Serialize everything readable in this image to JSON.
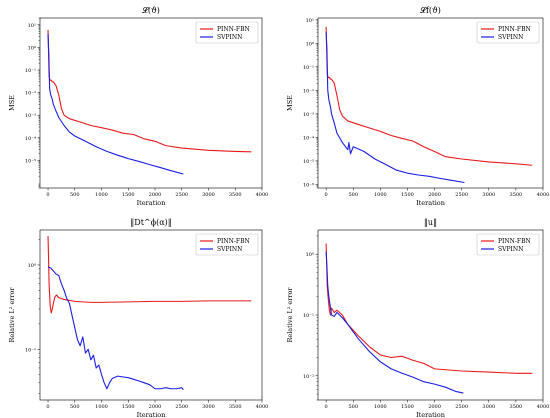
{
  "chart_data": [
    {
      "type": "line",
      "title": "𝓛(ϑ)",
      "xlabel": "Iteration",
      "ylabel": "MSE",
      "yscale": "log",
      "xlim": [
        -150,
        4000
      ],
      "ylim": [
        6e-07,
        20
      ],
      "xticks": [
        0,
        500,
        1000,
        1500,
        2000,
        2500,
        3000,
        3500,
        4000
      ],
      "yticks": [
        1e-05,
        0.0001,
        0.001,
        0.01,
        0.1,
        1,
        10
      ],
      "yticklabels": [
        "10⁻⁵",
        "10⁻⁴",
        "10⁻³",
        "10⁻²",
        "10⁻¹",
        "10⁰",
        "10¹"
      ],
      "legend": "top-right",
      "series": [
        {
          "name": "PINN-FBN",
          "color": "#e8191c",
          "x": [
            0,
            20,
            40,
            60,
            80,
            100,
            150,
            200,
            250,
            300,
            400,
            600,
            800,
            1000,
            1200,
            1400,
            1600,
            1800,
            2000,
            2200,
            2500,
            3000,
            3500,
            3800
          ],
          "y": [
            6,
            0.05,
            0.035,
            0.035,
            0.03,
            0.03,
            0.02,
            0.008,
            0.002,
            0.001,
            0.0007,
            0.0005,
            0.00035,
            0.00028,
            0.00022,
            0.00016,
            0.00014,
            9e-05,
            7e-05,
            4.5e-05,
            3.5e-05,
            2.8e-05,
            2.5e-05,
            2.4e-05
          ]
        },
        {
          "name": "SVPINN",
          "color": "#1b1ee0",
          "x": [
            0,
            15,
            30,
            50,
            80,
            100,
            150,
            200,
            300,
            400,
            500,
            700,
            900,
            1100,
            1300,
            1500,
            1700,
            1900,
            2100,
            2300,
            2530
          ],
          "y": [
            4,
            0.5,
            0.015,
            0.008,
            0.005,
            0.003,
            0.0015,
            0.0008,
            0.00035,
            0.00018,
            0.00012,
            7e-05,
            4e-05,
            2.5e-05,
            1.7e-05,
            1.2e-05,
            9e-06,
            6.5e-06,
            4.8e-06,
            3.5e-06,
            2.5e-06
          ]
        }
      ]
    },
    {
      "type": "line",
      "title": "𝓛f(ϑ)",
      "xlabel": "Iteration",
      "ylabel": "MSE",
      "yscale": "log",
      "xlim": [
        -150,
        4000
      ],
      "ylim": [
        7e-07,
        12
      ],
      "xticks": [
        0,
        500,
        1000,
        1500,
        2000,
        2500,
        3000,
        3500,
        4000
      ],
      "yticks": [
        1e-06,
        1e-05,
        0.0001,
        0.001,
        0.01,
        0.1,
        1,
        10
      ],
      "yticklabels": [
        "10⁻⁶",
        "10⁻⁵",
        "10⁻⁴",
        "10⁻³",
        "10⁻²",
        "10⁻¹",
        "10⁰",
        "10¹"
      ],
      "legend": "top-right",
      "series": [
        {
          "name": "PINN-FBN",
          "color": "#e8191c",
          "x": [
            0,
            20,
            40,
            60,
            80,
            100,
            150,
            200,
            250,
            300,
            400,
            600,
            800,
            1000,
            1200,
            1400,
            1600,
            1800,
            2000,
            2200,
            2500,
            3000,
            3500,
            3800
          ],
          "y": [
            5,
            0.05,
            0.035,
            0.035,
            0.03,
            0.03,
            0.02,
            0.006,
            0.0015,
            0.0008,
            0.0005,
            0.00035,
            0.00025,
            0.00018,
            0.00012,
            9e-05,
            7e-05,
            4e-05,
            2.5e-05,
            1.5e-05,
            1.2e-05,
            9e-06,
            7.5e-06,
            6.5e-06
          ]
        },
        {
          "name": "SVPINN",
          "color": "#1b1ee0",
          "x": [
            0,
            15,
            30,
            50,
            80,
            100,
            150,
            200,
            300,
            400,
            420,
            450,
            500,
            700,
            900,
            1100,
            1300,
            1500,
            1700,
            1900,
            2100,
            2300,
            2550
          ],
          "y": [
            3,
            0.5,
            0.01,
            0.004,
            0.002,
            0.001,
            0.0004,
            0.00015,
            6e-05,
            3e-05,
            6e-05,
            2e-05,
            4e-05,
            2.5e-05,
            1.2e-05,
            7e-06,
            4e-06,
            3e-06,
            2.5e-06,
            2.2e-06,
            1.8e-06,
            1.5e-06,
            1.2e-06
          ]
        }
      ]
    },
    {
      "type": "line",
      "title": "‖Dt^ϕ(α)‖",
      "xlabel": "Iteration",
      "ylabel": "Relative L² error",
      "yscale": "log",
      "xlim": [
        -150,
        4000
      ],
      "ylim": [
        0.025,
        2.6
      ],
      "xticks": [
        0,
        500,
        1000,
        1500,
        2000,
        2500,
        3000,
        3500,
        4000
      ],
      "yticks": [
        0.1,
        1
      ],
      "yticklabels": [
        "10⁻¹",
        "10⁰"
      ],
      "legend": "top-right",
      "series": [
        {
          "name": "PINN-FBN",
          "color": "#e8191c",
          "x": [
            0,
            10,
            20,
            40,
            60,
            80,
            100,
            130,
            160,
            200,
            300,
            500,
            800,
            1000,
            1500,
            2000,
            2500,
            3000,
            3500,
            3800
          ],
          "y": [
            2.2,
            1.2,
            0.6,
            0.33,
            0.27,
            0.3,
            0.35,
            0.42,
            0.44,
            0.41,
            0.39,
            0.37,
            0.36,
            0.36,
            0.365,
            0.37,
            0.37,
            0.375,
            0.375,
            0.375
          ]
        },
        {
          "name": "SVPINN",
          "color": "#1b1ee0",
          "x": [
            0,
            50,
            100,
            150,
            200,
            250,
            300,
            350,
            400,
            450,
            500,
            550,
            600,
            650,
            700,
            750,
            800,
            850,
            900,
            950,
            1000,
            1050,
            1100,
            1150,
            1200,
            1300,
            1400,
            1500,
            1600,
            1700,
            1800,
            1900,
            2000,
            2100,
            2200,
            2300,
            2400,
            2500,
            2530
          ],
          "y": [
            0.95,
            0.92,
            0.85,
            0.78,
            0.75,
            0.6,
            0.5,
            0.4,
            0.35,
            0.25,
            0.18,
            0.13,
            0.11,
            0.14,
            0.09,
            0.1,
            0.075,
            0.085,
            0.06,
            0.065,
            0.05,
            0.04,
            0.034,
            0.04,
            0.045,
            0.048,
            0.047,
            0.046,
            0.044,
            0.042,
            0.04,
            0.038,
            0.034,
            0.034,
            0.035,
            0.034,
            0.034,
            0.035,
            0.033
          ]
        }
      ]
    },
    {
      "type": "line",
      "title": "‖u‖",
      "xlabel": "Iteration",
      "ylabel": "Relative L² error",
      "yscale": "log",
      "xlim": [
        -150,
        4000
      ],
      "ylim": [
        0.004,
        2.5
      ],
      "xticks": [
        0,
        500,
        1000,
        1500,
        2000,
        2500,
        3000,
        3500,
        4000
      ],
      "yticks": [
        0.01,
        0.1,
        1
      ],
      "yticklabels": [
        "10⁻²",
        "10⁻¹",
        "10⁰"
      ],
      "legend": "top-right",
      "series": [
        {
          "name": "PINN-FBN",
          "color": "#e8191c",
          "x": [
            0,
            20,
            40,
            60,
            80,
            100,
            150,
            200,
            300,
            400,
            600,
            800,
            1000,
            1200,
            1400,
            1600,
            1800,
            2000,
            2500,
            3000,
            3500,
            3800
          ],
          "y": [
            1.5,
            0.3,
            0.18,
            0.12,
            0.1,
            0.13,
            0.11,
            0.12,
            0.1,
            0.07,
            0.045,
            0.03,
            0.022,
            0.02,
            0.021,
            0.018,
            0.016,
            0.013,
            0.012,
            0.0115,
            0.011,
            0.011
          ]
        },
        {
          "name": "SVPINN",
          "color": "#1b1ee0",
          "x": [
            0,
            15,
            30,
            50,
            80,
            100,
            150,
            200,
            300,
            400,
            600,
            800,
            1000,
            1200,
            1400,
            1600,
            1800,
            2000,
            2200,
            2400,
            2530
          ],
          "y": [
            1.1,
            0.6,
            0.3,
            0.2,
            0.13,
            0.1,
            0.095,
            0.11,
            0.09,
            0.07,
            0.04,
            0.025,
            0.017,
            0.013,
            0.011,
            0.0095,
            0.008,
            0.0073,
            0.0065,
            0.0055,
            0.0052
          ]
        }
      ]
    }
  ]
}
